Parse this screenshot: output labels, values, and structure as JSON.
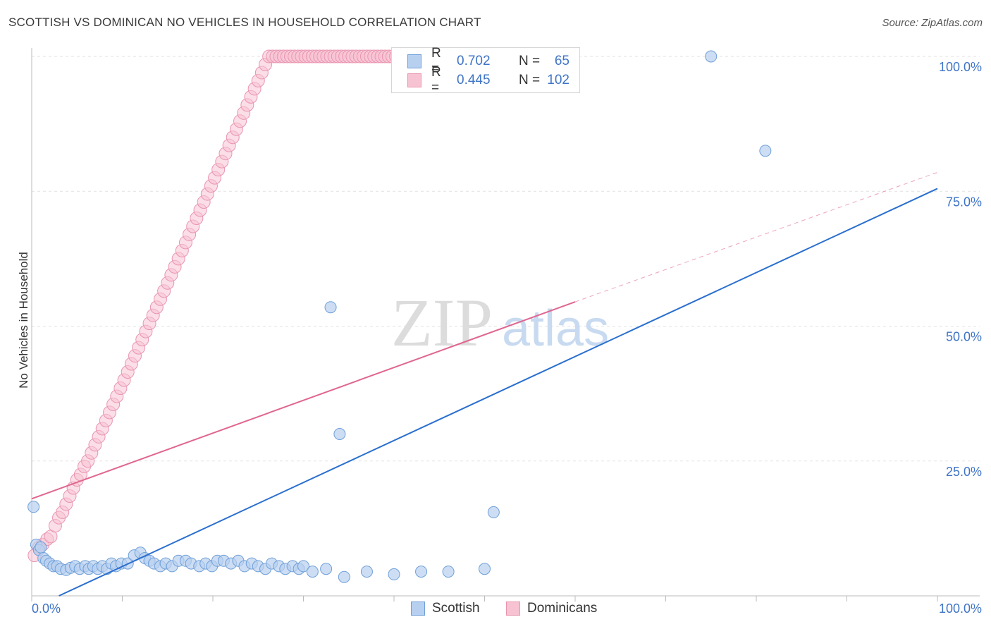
{
  "header": {
    "title": "SCOTTISH VS DOMINICAN NO VEHICLES IN HOUSEHOLD CORRELATION CHART",
    "source": "Source: ZipAtlas.com"
  },
  "legend": {
    "scottish": {
      "r_label": "R =",
      "r_value": "0.702",
      "n_label": "N =",
      "n_value": "65"
    },
    "dominican": {
      "r_label": "R =",
      "r_value": "0.445",
      "n_label": "N =",
      "n_value": "102"
    }
  },
  "colors": {
    "scottish_fill": "#b8d0f0",
    "scottish_stroke": "#6f9fd8",
    "scottish_line": "#2a6fce",
    "dominican_fill": "#f7c3d3",
    "dominican_stroke": "#e995b0",
    "dominican_line": "#e06690"
  },
  "watermark": {
    "zip": "ZIP",
    "atlas": "atlas"
  },
  "chart_data": {
    "type": "scatter",
    "title": "SCOTTISH VS DOMINICAN NO VEHICLES IN HOUSEHOLD CORRELATION CHART",
    "xlabel": "",
    "ylabel": "No Vehicles in Household",
    "xlim": [
      0,
      100
    ],
    "ylim": [
      0,
      100
    ],
    "x_tick_labels": [
      "0.0%",
      "100.0%"
    ],
    "y_ticks": [
      25,
      50,
      75,
      100
    ],
    "y_tick_labels": [
      "25.0%",
      "50.0%",
      "75.0%",
      "100.0%"
    ],
    "series": [
      {
        "name": "Scottish",
        "points": [
          [
            0.2,
            16.5
          ],
          [
            0.5,
            9.5
          ],
          [
            0.8,
            8.5
          ],
          [
            1.0,
            9.0
          ],
          [
            1.3,
            7.0
          ],
          [
            1.6,
            6.5
          ],
          [
            2.0,
            6.0
          ],
          [
            2.4,
            5.5
          ],
          [
            2.8,
            5.5
          ],
          [
            3.2,
            5.0
          ],
          [
            3.8,
            4.8
          ],
          [
            4.3,
            5.2
          ],
          [
            4.8,
            5.5
          ],
          [
            5.3,
            5.0
          ],
          [
            5.9,
            5.5
          ],
          [
            6.3,
            5.0
          ],
          [
            6.8,
            5.5
          ],
          [
            7.3,
            5.0
          ],
          [
            7.8,
            5.5
          ],
          [
            8.3,
            5.0
          ],
          [
            8.8,
            6.0
          ],
          [
            9.3,
            5.5
          ],
          [
            9.9,
            6.0
          ],
          [
            10.6,
            6.0
          ],
          [
            11.3,
            7.5
          ],
          [
            12.0,
            8.0
          ],
          [
            12.5,
            7.0
          ],
          [
            13.0,
            6.5
          ],
          [
            13.5,
            6.0
          ],
          [
            14.2,
            5.5
          ],
          [
            14.8,
            6.0
          ],
          [
            15.5,
            5.5
          ],
          [
            16.2,
            6.5
          ],
          [
            17.0,
            6.5
          ],
          [
            17.6,
            6.0
          ],
          [
            18.5,
            5.5
          ],
          [
            19.2,
            6.0
          ],
          [
            19.9,
            5.5
          ],
          [
            20.5,
            6.5
          ],
          [
            21.2,
            6.5
          ],
          [
            22.0,
            6.0
          ],
          [
            22.8,
            6.5
          ],
          [
            23.5,
            5.5
          ],
          [
            24.3,
            6.0
          ],
          [
            25.0,
            5.5
          ],
          [
            25.8,
            5.0
          ],
          [
            26.5,
            6.0
          ],
          [
            27.3,
            5.5
          ],
          [
            28.0,
            5.0
          ],
          [
            28.8,
            5.5
          ],
          [
            29.5,
            5.0
          ],
          [
            30.0,
            5.5
          ],
          [
            31.0,
            4.5
          ],
          [
            32.5,
            5.0
          ],
          [
            34.5,
            3.5
          ],
          [
            37.0,
            4.5
          ],
          [
            40.0,
            4.0
          ],
          [
            43.0,
            4.5
          ],
          [
            46.0,
            4.5
          ],
          [
            50.0,
            5.0
          ],
          [
            34.0,
            30.0
          ],
          [
            33.0,
            53.5
          ],
          [
            51.0,
            15.5
          ],
          [
            81.0,
            82.5
          ],
          [
            75.0,
            100
          ]
        ]
      },
      {
        "name": "Dominicans",
        "points": [
          [
            0.3,
            7.5
          ],
          [
            0.8,
            9.0
          ],
          [
            1.2,
            9.5
          ],
          [
            1.7,
            10.5
          ],
          [
            2.1,
            11.0
          ],
          [
            2.6,
            13.0
          ],
          [
            3.0,
            14.5
          ],
          [
            3.4,
            15.5
          ],
          [
            3.8,
            17.0
          ],
          [
            4.2,
            18.5
          ],
          [
            4.6,
            20.0
          ],
          [
            5.0,
            21.5
          ],
          [
            5.4,
            22.5
          ],
          [
            5.8,
            24.0
          ],
          [
            6.2,
            25.0
          ],
          [
            6.6,
            26.5
          ],
          [
            7.0,
            28.0
          ],
          [
            7.4,
            29.5
          ],
          [
            7.8,
            31.0
          ],
          [
            8.2,
            32.5
          ],
          [
            8.6,
            34.0
          ],
          [
            9.0,
            35.5
          ],
          [
            9.4,
            37.0
          ],
          [
            9.8,
            38.5
          ],
          [
            10.2,
            40.0
          ],
          [
            10.6,
            41.5
          ],
          [
            11.0,
            43.0
          ],
          [
            11.4,
            44.5
          ],
          [
            11.8,
            46.0
          ],
          [
            12.2,
            47.5
          ],
          [
            12.6,
            49.0
          ],
          [
            13.0,
            50.5
          ],
          [
            13.4,
            52.0
          ],
          [
            13.8,
            53.5
          ],
          [
            14.2,
            55.0
          ],
          [
            14.6,
            56.5
          ],
          [
            15.0,
            58.0
          ],
          [
            15.4,
            59.5
          ],
          [
            15.8,
            61.0
          ],
          [
            16.2,
            62.5
          ],
          [
            16.6,
            64.0
          ],
          [
            17.0,
            65.5
          ],
          [
            17.4,
            67.0
          ],
          [
            17.8,
            68.5
          ],
          [
            18.2,
            70.0
          ],
          [
            18.6,
            71.5
          ],
          [
            19.0,
            73.0
          ],
          [
            19.4,
            74.5
          ],
          [
            19.8,
            76.0
          ],
          [
            20.2,
            77.5
          ],
          [
            20.6,
            79.0
          ],
          [
            21.0,
            80.5
          ],
          [
            21.4,
            82.0
          ],
          [
            21.8,
            83.5
          ],
          [
            22.2,
            85.0
          ],
          [
            22.6,
            86.5
          ],
          [
            23.0,
            88.0
          ],
          [
            23.4,
            89.5
          ],
          [
            23.8,
            91.0
          ],
          [
            24.2,
            92.5
          ],
          [
            24.6,
            94.0
          ],
          [
            25.0,
            95.5
          ],
          [
            25.4,
            97.0
          ],
          [
            25.8,
            98.5
          ],
          [
            26.2,
            100
          ],
          [
            26.6,
            100
          ],
          [
            27.0,
            100
          ],
          [
            27.4,
            100
          ],
          [
            27.8,
            100
          ],
          [
            28.2,
            100
          ],
          [
            28.6,
            100
          ],
          [
            29.0,
            100
          ],
          [
            29.4,
            100
          ],
          [
            29.8,
            100
          ],
          [
            30.2,
            100
          ],
          [
            30.6,
            100
          ],
          [
            31.0,
            100
          ],
          [
            31.4,
            100
          ],
          [
            31.8,
            100
          ],
          [
            32.2,
            100
          ],
          [
            32.6,
            100
          ],
          [
            33.0,
            100
          ],
          [
            33.4,
            100
          ],
          [
            33.8,
            100
          ],
          [
            34.2,
            100
          ],
          [
            34.6,
            100
          ],
          [
            35.0,
            100
          ],
          [
            35.4,
            100
          ],
          [
            35.8,
            100
          ],
          [
            36.2,
            100
          ],
          [
            36.6,
            100
          ],
          [
            37.0,
            100
          ],
          [
            37.4,
            100
          ],
          [
            37.8,
            100
          ],
          [
            38.2,
            100
          ],
          [
            38.6,
            100
          ],
          [
            39.0,
            100
          ],
          [
            39.4,
            100
          ],
          [
            39.8,
            100
          ],
          [
            40.2,
            100
          ],
          [
            40.6,
            100
          ],
          [
            41.0,
            100
          ]
        ]
      }
    ],
    "trend_lines": [
      {
        "name": "Scottish",
        "x": [
          3,
          100
        ],
        "y": [
          0,
          75.5
        ]
      },
      {
        "name": "Dominicans",
        "x": [
          0,
          60
        ],
        "y": [
          18,
          54.5
        ],
        "dashed_extension": {
          "x": [
            60,
            100
          ],
          "y": [
            54.5,
            78.5
          ]
        }
      }
    ],
    "legend_position": "bottom-center"
  }
}
